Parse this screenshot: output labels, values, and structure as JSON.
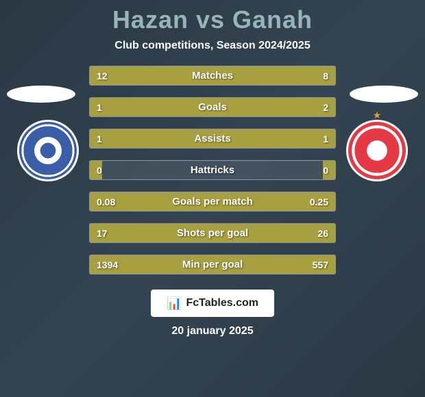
{
  "title": "Hazan vs Ganah",
  "subtitle": "Club competitions, Season 2024/2025",
  "date": "20 january 2025",
  "logo_text": "FcTables.com",
  "colors": {
    "title": "#96b4ba",
    "bar": "#a8a040",
    "background_start": "#2a3844",
    "background_end": "#344452",
    "text": "#ffffff",
    "badge_left_primary": "#3a5fa8",
    "badge_right_primary": "#e63946"
  },
  "stats": [
    {
      "label": "Matches",
      "left_val": "12",
      "right_val": "8",
      "left_pct": 60,
      "right_pct": 40
    },
    {
      "label": "Goals",
      "left_val": "1",
      "right_val": "2",
      "left_pct": 33,
      "right_pct": 67
    },
    {
      "label": "Assists",
      "left_val": "1",
      "right_val": "1",
      "left_pct": 50,
      "right_pct": 50
    },
    {
      "label": "Hattricks",
      "left_val": "0",
      "right_val": "0",
      "left_pct": 5,
      "right_pct": 5
    },
    {
      "label": "Goals per match",
      "left_val": "0.08",
      "right_val": "0.25",
      "left_pct": 24,
      "right_pct": 76
    },
    {
      "label": "Shots per goal",
      "left_val": "17",
      "right_val": "26",
      "left_pct": 40,
      "right_pct": 60
    },
    {
      "label": "Min per goal",
      "left_val": "1394",
      "right_val": "557",
      "left_pct": 71,
      "right_pct": 29
    }
  ]
}
